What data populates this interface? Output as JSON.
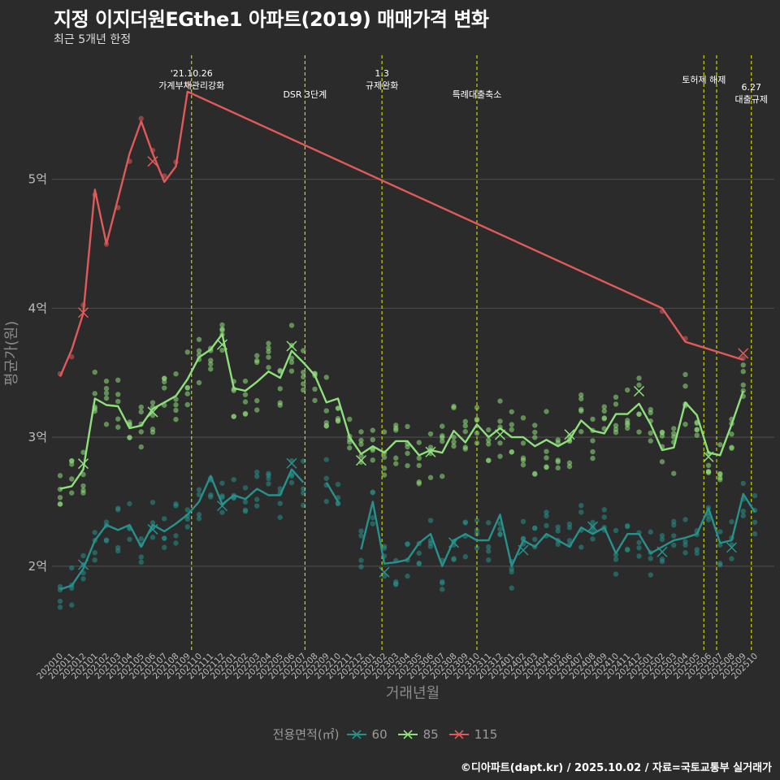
{
  "title": "지정 이지더원EGthe1 아파트(2019) 매매가격 변화",
  "subtitle": "최근 5개년 한정",
  "caption": "©디아파트(dapt.kr) / 2025.10.02 / 자료=국토교통부 실거래가",
  "chart_data": {
    "type": "line",
    "xlabel": "거래년월",
    "ylabel": "평균가(원)",
    "ylim": [
      1.35,
      6.0
    ],
    "yticks": [
      2,
      3,
      4,
      5
    ],
    "ytick_labels": [
      "2억",
      "3억",
      "4억",
      "5억"
    ],
    "x_labels": [
      "202010",
      "202011",
      "202012",
      "202101",
      "202102",
      "202103",
      "202104",
      "202105",
      "202106",
      "202107",
      "202108",
      "202109",
      "202110",
      "202111",
      "202112",
      "202201",
      "202202",
      "202203",
      "202204",
      "202205",
      "202206",
      "202207",
      "202208",
      "202209",
      "202210",
      "202211",
      "202212",
      "202301",
      "202302",
      "202303",
      "202304",
      "202305",
      "202306",
      "202307",
      "202308",
      "202309",
      "202310",
      "202311",
      "202312",
      "202401",
      "202402",
      "202403",
      "202404",
      "202405",
      "202406",
      "202407",
      "202408",
      "202409",
      "202410",
      "202411",
      "202412",
      "202501",
      "202502",
      "202503",
      "202504",
      "202505",
      "202506",
      "202507",
      "202508",
      "202509",
      "202510"
    ],
    "legend_title": "전용면적(㎡)",
    "series": [
      {
        "name": "60",
        "color": "#27918c",
        "points": [
          [
            0,
            1.82
          ],
          [
            1,
            1.85
          ],
          [
            2,
            1.98
          ],
          [
            3,
            2.2
          ],
          [
            4,
            2.32
          ],
          [
            5,
            2.28
          ],
          [
            6,
            2.32
          ],
          [
            7,
            2.15
          ],
          [
            8,
            2.32
          ],
          [
            9,
            2.27
          ],
          [
            10,
            2.33
          ],
          [
            11,
            2.4
          ],
          [
            12,
            2.5
          ],
          [
            13,
            2.7
          ],
          [
            14,
            2.48
          ],
          [
            15,
            2.55
          ],
          [
            16,
            2.52
          ],
          [
            17,
            2.6
          ],
          [
            18,
            2.55
          ],
          [
            19,
            2.55
          ],
          [
            20,
            2.75
          ],
          [
            21,
            2.65
          ],
          [
            23,
            2.65
          ],
          [
            24,
            2.5
          ],
          [
            26,
            2.13
          ],
          [
            27,
            2.5
          ],
          [
            28,
            2.02
          ],
          [
            29,
            2.03
          ],
          [
            30,
            2.05
          ],
          [
            31,
            2.18
          ],
          [
            32,
            2.25
          ],
          [
            33,
            2.0
          ],
          [
            34,
            2.2
          ],
          [
            35,
            2.25
          ],
          [
            36,
            2.2
          ],
          [
            37,
            2.2
          ],
          [
            38,
            2.4
          ],
          [
            39,
            2.0
          ],
          [
            40,
            2.2
          ],
          [
            41,
            2.15
          ],
          [
            42,
            2.25
          ],
          [
            43,
            2.2
          ],
          [
            44,
            2.15
          ],
          [
            45,
            2.3
          ],
          [
            46,
            2.25
          ],
          [
            47,
            2.3
          ],
          [
            48,
            2.1
          ],
          [
            49,
            2.25
          ],
          [
            50,
            2.25
          ],
          [
            51,
            2.1
          ],
          [
            52,
            2.15
          ],
          [
            53,
            2.2
          ],
          [
            54,
            2.22
          ],
          [
            55,
            2.25
          ],
          [
            56,
            2.45
          ],
          [
            57,
            2.18
          ],
          [
            58,
            2.2
          ],
          [
            59,
            2.56
          ],
          [
            60,
            2.42
          ]
        ]
      },
      {
        "name": "85",
        "color": "#8fe07c",
        "points": [
          [
            0,
            2.6
          ],
          [
            1,
            2.62
          ],
          [
            2,
            2.75
          ],
          [
            3,
            3.3
          ],
          [
            4,
            3.25
          ],
          [
            5,
            3.24
          ],
          [
            6,
            3.07
          ],
          [
            7,
            3.09
          ],
          [
            8,
            3.22
          ],
          [
            9,
            3.27
          ],
          [
            10,
            3.32
          ],
          [
            11,
            3.45
          ],
          [
            12,
            3.62
          ],
          [
            13,
            3.68
          ],
          [
            14,
            3.8
          ],
          [
            15,
            3.38
          ],
          [
            16,
            3.36
          ],
          [
            17,
            3.43
          ],
          [
            18,
            3.51
          ],
          [
            19,
            3.46
          ],
          [
            20,
            3.67
          ],
          [
            21,
            3.58
          ],
          [
            22,
            3.48
          ],
          [
            23,
            3.27
          ],
          [
            24,
            3.3
          ],
          [
            25,
            3.0
          ],
          [
            26,
            2.87
          ],
          [
            27,
            2.93
          ],
          [
            28,
            2.88
          ],
          [
            29,
            2.97
          ],
          [
            30,
            2.97
          ],
          [
            31,
            2.86
          ],
          [
            32,
            2.9
          ],
          [
            33,
            2.88
          ],
          [
            34,
            3.05
          ],
          [
            35,
            2.96
          ],
          [
            36,
            3.1
          ],
          [
            37,
            3.0
          ],
          [
            38,
            3.07
          ],
          [
            39,
            3.0
          ],
          [
            40,
            3.0
          ],
          [
            41,
            2.93
          ],
          [
            42,
            2.98
          ],
          [
            43,
            2.93
          ],
          [
            44,
            2.98
          ],
          [
            45,
            3.13
          ],
          [
            46,
            3.05
          ],
          [
            47,
            3.03
          ],
          [
            48,
            3.18
          ],
          [
            49,
            3.18
          ],
          [
            50,
            3.26
          ],
          [
            51,
            3.1
          ],
          [
            52,
            2.9
          ],
          [
            53,
            2.92
          ],
          [
            54,
            3.27
          ],
          [
            55,
            3.17
          ],
          [
            56,
            2.88
          ],
          [
            57,
            2.86
          ],
          [
            58,
            3.1
          ],
          [
            59,
            3.36
          ]
        ]
      },
      {
        "name": "115",
        "color": "#e05a5a",
        "points": [
          [
            0,
            3.47
          ],
          [
            1,
            3.68
          ],
          [
            2,
            3.96
          ],
          [
            3,
            4.92
          ],
          [
            4,
            4.5
          ],
          [
            5,
            4.85
          ],
          [
            6,
            5.2
          ],
          [
            7,
            5.45
          ],
          [
            8,
            5.2
          ],
          [
            9,
            4.98
          ],
          [
            10,
            5.1
          ],
          [
            11,
            5.68
          ],
          [
            52,
            4.0
          ],
          [
            54,
            3.74
          ],
          [
            59,
            3.6
          ]
        ]
      }
    ],
    "annotations": [
      {
        "x": 11.35,
        "lines": [
          "'21.10.26",
          "가계부채관리강화"
        ],
        "row": "top"
      },
      {
        "x": 21.15,
        "lines": [
          "DSR 3단계"
        ],
        "row": "low"
      },
      {
        "x": 27.8,
        "lines": [
          "1.3",
          "규제완화"
        ],
        "row": "top"
      },
      {
        "x": 36.0,
        "lines": [
          "특례대출축소"
        ],
        "row": "low"
      },
      {
        "x": 55.6,
        "lines": [
          "토허제 해제"
        ],
        "row": "mid"
      },
      {
        "x": 56.7,
        "lines": [],
        "row": "none"
      },
      {
        "x": 59.7,
        "lines": [
          "6.27",
          "대출규제"
        ],
        "row": "low2"
      }
    ]
  },
  "legend": {
    "title": "전용면적(㎡)",
    "items": [
      {
        "label": "60",
        "color": "#27918c"
      },
      {
        "label": "85",
        "color": "#8fe07c"
      },
      {
        "label": "115",
        "color": "#e05a5a"
      }
    ]
  }
}
